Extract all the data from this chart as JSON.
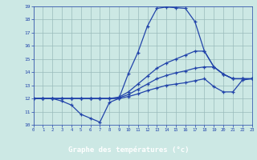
{
  "xlabel": "Graphe des températures (°c)",
  "xlim": [
    0,
    23
  ],
  "ylim": [
    10,
    19
  ],
  "yticks": [
    10,
    11,
    12,
    13,
    14,
    15,
    16,
    17,
    18,
    19
  ],
  "xticks": [
    0,
    1,
    2,
    3,
    4,
    5,
    6,
    7,
    8,
    9,
    10,
    11,
    12,
    13,
    14,
    15,
    16,
    17,
    18,
    19,
    20,
    21,
    22,
    23
  ],
  "bg_color": "#cce8e4",
  "xlabel_bg": "#2244aa",
  "xlabel_fg": "#ffffff",
  "line_color": "#2244aa",
  "grid_color": "#99bbbb",
  "series_max": [
    12.0,
    12.0,
    12.0,
    11.8,
    11.5,
    10.8,
    10.5,
    10.2,
    11.7,
    12.0,
    13.9,
    15.5,
    17.5,
    18.85,
    18.95,
    18.9,
    18.85,
    17.85,
    15.6,
    14.4,
    13.85,
    13.5,
    13.5,
    13.5
  ],
  "series_hi": [
    12.0,
    12.0,
    12.0,
    12.0,
    12.0,
    12.0,
    12.0,
    12.0,
    12.0,
    12.1,
    12.5,
    13.1,
    13.7,
    14.3,
    14.7,
    15.0,
    15.3,
    15.6,
    15.6,
    14.4,
    13.85,
    13.5,
    13.5,
    13.5
  ],
  "series_mid": [
    12.0,
    12.0,
    12.0,
    12.0,
    12.0,
    12.0,
    12.0,
    12.0,
    12.0,
    12.05,
    12.3,
    12.7,
    13.1,
    13.5,
    13.75,
    13.95,
    14.1,
    14.3,
    14.4,
    14.4,
    13.85,
    13.5,
    13.5,
    13.5
  ],
  "series_min": [
    12.0,
    12.0,
    12.0,
    12.0,
    12.0,
    12.0,
    12.0,
    12.0,
    12.0,
    12.0,
    12.15,
    12.35,
    12.6,
    12.8,
    13.0,
    13.1,
    13.2,
    13.35,
    13.5,
    12.9,
    12.5,
    12.5,
    13.4,
    13.5
  ]
}
